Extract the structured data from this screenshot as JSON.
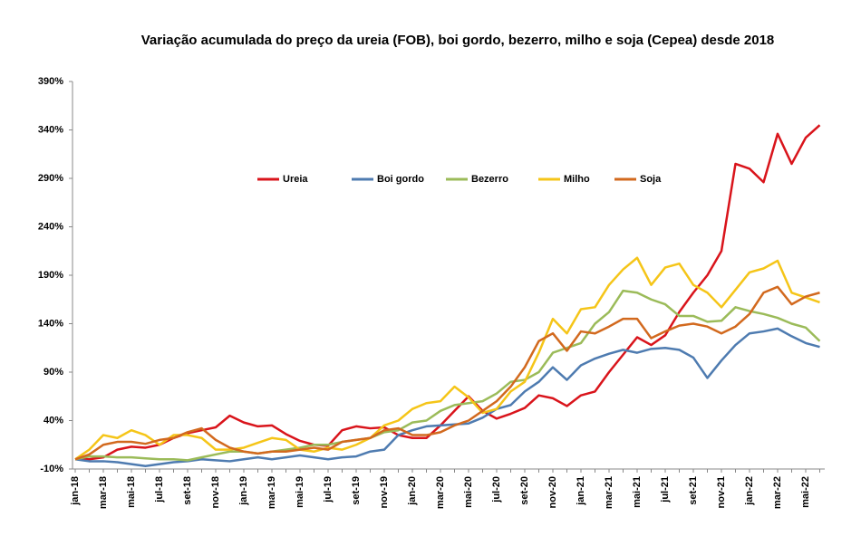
{
  "chart_data": {
    "type": "line",
    "title": "Variação acumulada do preço da ureia (FOB), boi gordo, bezerro, milho e soja (Cepea) desde 2018",
    "categories": [
      "jan-18",
      null,
      "mar-18",
      null,
      "mai-18",
      null,
      "jul-18",
      null,
      "set-18",
      null,
      "nov-18",
      null,
      "jan-19",
      null,
      "mar-19",
      null,
      "mai-19",
      null,
      "jul-19",
      null,
      "set-19",
      null,
      "nov-19",
      null,
      "jan-20",
      null,
      "mar-20",
      null,
      "mai-20",
      null,
      "jul-20",
      null,
      "set-20",
      null,
      "nov-20",
      null,
      "jan-21",
      null,
      "mar-21",
      null,
      "mai-21",
      null,
      "jul-21",
      null,
      "set-21",
      null,
      "nov-21",
      null,
      "jan-22",
      null,
      "mar-22",
      null,
      "mai-22",
      null
    ],
    "series": [
      {
        "name": "Ureia",
        "color": "#d9141b",
        "values": [
          0,
          0,
          2,
          10,
          13,
          12,
          15,
          22,
          27,
          30,
          33,
          45,
          38,
          34,
          35,
          26,
          19,
          15,
          14,
          30,
          34,
          32,
          33,
          25,
          22,
          22,
          35,
          50,
          65,
          50,
          42,
          47,
          53,
          66,
          63,
          55,
          66,
          70,
          90,
          108,
          126,
          118,
          128,
          152,
          172,
          190,
          215,
          305,
          300,
          286,
          336,
          305,
          332,
          345
        ]
      },
      {
        "name": "Boi gordo",
        "color": "#4e7bb0",
        "values": [
          0,
          -2,
          -2,
          -3,
          -5,
          -7,
          -5,
          -3,
          -2,
          0,
          -1,
          -2,
          0,
          2,
          0,
          2,
          4,
          2,
          0,
          2,
          3,
          8,
          10,
          25,
          30,
          34,
          35,
          36,
          37,
          43,
          52,
          56,
          70,
          80,
          95,
          82,
          97,
          104,
          109,
          113,
          110,
          114,
          115,
          113,
          105,
          84,
          102,
          118,
          130,
          132,
          135,
          127,
          120,
          116
        ]
      },
      {
        "name": "Bezerro",
        "color": "#9bbb59",
        "values": [
          0,
          3,
          3,
          2,
          2,
          1,
          0,
          0,
          -1,
          2,
          5,
          8,
          8,
          6,
          8,
          10,
          12,
          15,
          15,
          18,
          20,
          22,
          28,
          30,
          38,
          40,
          50,
          56,
          58,
          60,
          68,
          80,
          82,
          90,
          110,
          115,
          120,
          140,
          152,
          174,
          172,
          165,
          160,
          148,
          148,
          142,
          143,
          157,
          153,
          150,
          146,
          140,
          136,
          122
        ]
      },
      {
        "name": "Milho",
        "color": "#f5c518",
        "values": [
          0,
          10,
          25,
          22,
          30,
          25,
          15,
          25,
          25,
          22,
          10,
          10,
          12,
          17,
          22,
          20,
          10,
          8,
          12,
          10,
          15,
          22,
          35,
          40,
          52,
          58,
          60,
          75,
          64,
          48,
          52,
          70,
          80,
          110,
          145,
          130,
          155,
          157,
          180,
          196,
          208,
          180,
          198,
          202,
          180,
          172,
          157,
          175,
          193,
          197,
          205,
          172,
          167,
          162
        ]
      },
      {
        "name": "Soja",
        "color": "#d2691e",
        "values": [
          0,
          5,
          15,
          18,
          18,
          16,
          20,
          22,
          28,
          32,
          20,
          12,
          8,
          6,
          8,
          8,
          10,
          12,
          10,
          18,
          20,
          22,
          30,
          32,
          25,
          25,
          28,
          35,
          40,
          50,
          60,
          75,
          95,
          122,
          130,
          112,
          132,
          130,
          137,
          145,
          145,
          125,
          132,
          138,
          140,
          137,
          130,
          137,
          150,
          172,
          178,
          160,
          168,
          172
        ]
      }
    ],
    "ylim": [
      -10,
      390
    ],
    "yticks": [
      {
        "value": -10,
        "label": "-10%"
      },
      {
        "value": 40,
        "label": "40%"
      },
      {
        "value": 90,
        "label": "90%"
      },
      {
        "value": 140,
        "label": "140%"
      },
      {
        "value": 190,
        "label": "190%"
      },
      {
        "value": 240,
        "label": "240%"
      },
      {
        "value": 290,
        "label": "290%"
      },
      {
        "value": 340,
        "label": "340%"
      },
      {
        "value": 390,
        "label": "390%"
      }
    ],
    "grid": false,
    "legend": "center"
  }
}
